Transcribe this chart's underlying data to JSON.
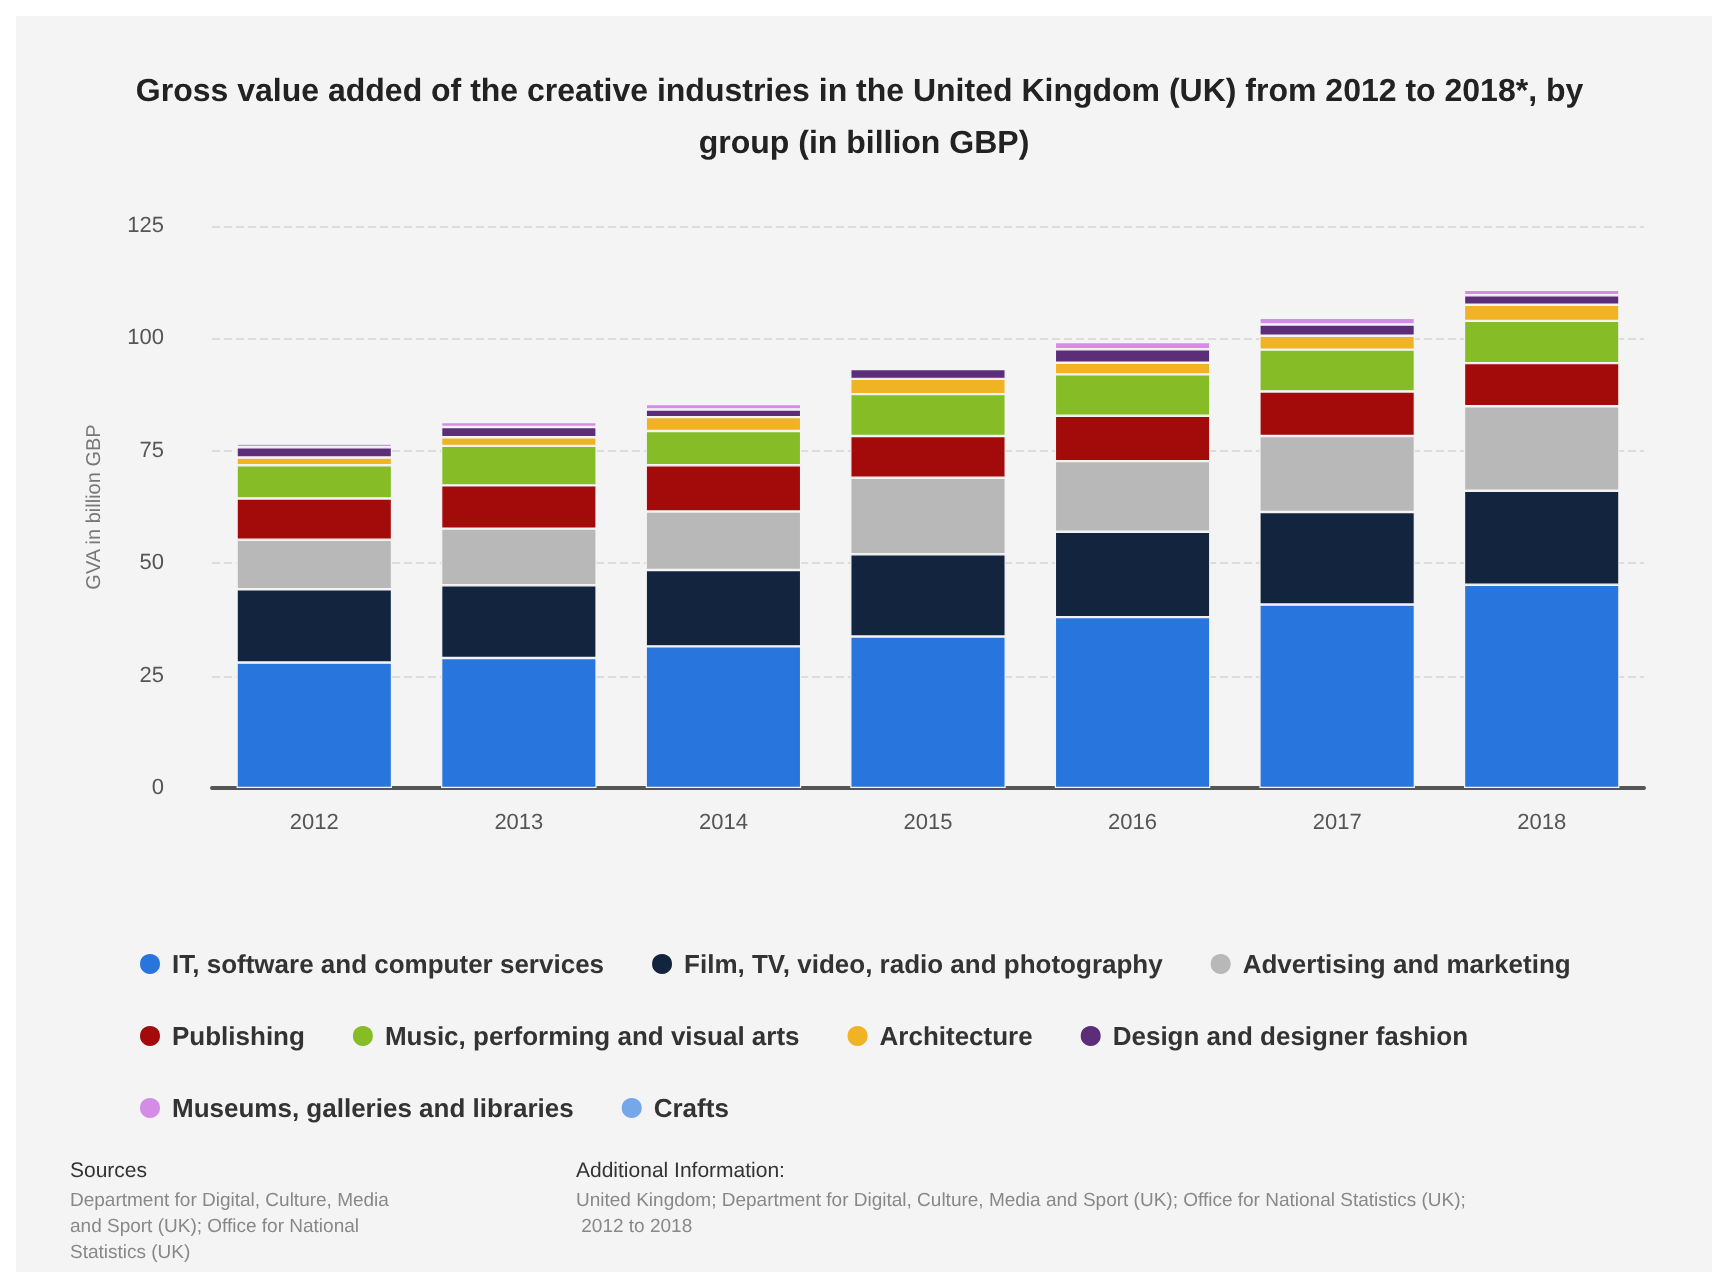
{
  "chart_data": {
    "type": "bar",
    "stacked": true,
    "title": "Gross value added of the creative industries in the United Kingdom (UK) from 2012 to 2018*, by group (in billion GBP)",
    "ylabel": "GVA in billion GBP",
    "categories": [
      "2012",
      "2013",
      "2014",
      "2015",
      "2016",
      "2017",
      "2018"
    ],
    "series": [
      {
        "name": "IT, software and computer services",
        "color": "#2876dd",
        "values": [
          27.9,
          28.9,
          31.5,
          33.7,
          38,
          40.8,
          45.2
        ]
      },
      {
        "name": "Film, TV, video, radio and photography",
        "color": "#13253e",
        "values": [
          16.3,
          16.2,
          17,
          18.3,
          19,
          20.6,
          20.9
        ]
      },
      {
        "name": "Advertising and marketing",
        "color": "#b8b8b8",
        "values": [
          11,
          12.6,
          13,
          17,
          15.7,
          16.9,
          18.8
        ]
      },
      {
        "name": "Publishing",
        "color": "#a30b0b",
        "values": [
          9.2,
          9.6,
          10.3,
          9.3,
          10.1,
          9.9,
          9.6
        ]
      },
      {
        "name": "Music, performing and visual arts",
        "color": "#86bc25",
        "values": [
          7.4,
          8.8,
          7.6,
          9.3,
          9.2,
          9.3,
          9.4
        ]
      },
      {
        "name": "Architecture",
        "color": "#f0b323",
        "values": [
          1.7,
          1.9,
          3.1,
          3.4,
          2.6,
          3.1,
          3.6
        ]
      },
      {
        "name": "Design and designer fashion",
        "color": "#5c2d78",
        "values": [
          2.3,
          2.3,
          1.7,
          2.2,
          3,
          2.5,
          2.1
        ]
      },
      {
        "name": "Museums, galleries and libraries",
        "color": "#d58ce6",
        "values": [
          0.8,
          1.1,
          1.2,
          null,
          1.6,
          1.5,
          1.2
        ]
      },
      {
        "name": "Crafts",
        "color": "#76a7e8",
        "values": [
          null,
          null,
          null,
          null,
          null,
          null,
          null
        ]
      }
    ],
    "ylim": [
      0,
      125
    ],
    "yticks": [
      0,
      25,
      50,
      75,
      100,
      125
    ],
    "grid": "y",
    "legend": "bottom",
    "annotations": [
      "Sources",
      "Department for Digital, Culture, Media and Sport (UK); Office for National Statistics (UK)",
      "Additional Information:",
      "United Kingdom; Department for Digital, Culture, Media and Sport (UK); Office for National Statistics (UK); 2012 to 2018"
    ]
  }
}
